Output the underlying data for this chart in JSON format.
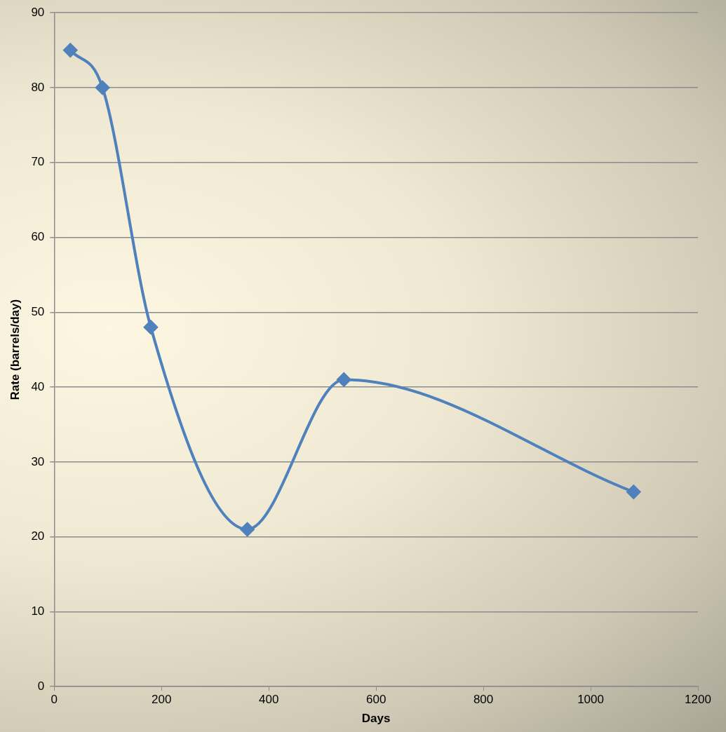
{
  "chart_data": {
    "type": "line",
    "xlabel": "Days",
    "ylabel": "Rate (barrels/day)",
    "x": [
      30,
      90,
      180,
      360,
      540,
      1080
    ],
    "series": [
      {
        "color": "#4f81bd",
        "values": [
          85,
          80,
          48,
          21,
          41,
          26
        ]
      }
    ],
    "xlim": [
      0,
      1200
    ],
    "xticks": [
      0,
      200,
      400,
      600,
      800,
      1000,
      1200
    ],
    "ylim": [
      0,
      90
    ],
    "yticks": [
      0,
      10,
      20,
      30,
      40,
      50,
      60,
      70,
      80,
      90
    ],
    "grid": "y",
    "legend": false,
    "marker": "diamond",
    "line_style": "solid"
  }
}
